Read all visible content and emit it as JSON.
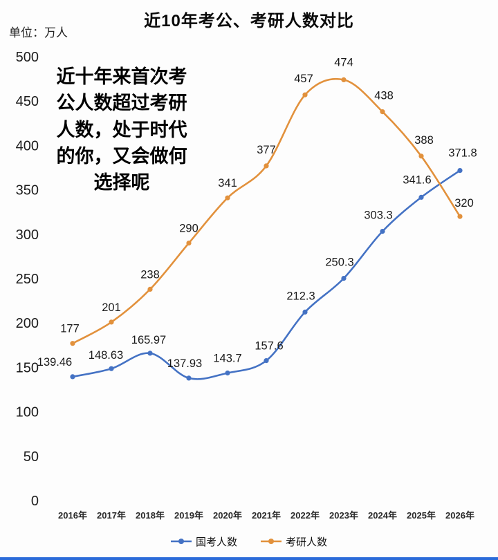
{
  "page": {
    "title": "近10年考公、考研人数对比",
    "unit_label": "单位：万人",
    "annotation_lines": [
      "近十年来首次考",
      "公人数超过考研",
      "人数，处于时代",
      "的你，又会做何",
      "选择呢"
    ],
    "bottom_bar_color": "#2b6bd9"
  },
  "chart_data": {
    "type": "line",
    "title": "近10年考公、考研人数对比",
    "unit": "万人",
    "categories": [
      "2016年",
      "2017年",
      "2018年",
      "2019年",
      "2020年",
      "2021年",
      "2022年",
      "2023年",
      "2024年",
      "2025年",
      "2026年"
    ],
    "series": [
      {
        "name": "国考人数",
        "color": "#4472c4",
        "values": [
          139.46,
          148.63,
          165.97,
          137.93,
          143.7,
          157.6,
          212.3,
          250.3,
          303.3,
          341.6,
          371.8
        ]
      },
      {
        "name": "考研人数",
        "color": "#e2913c",
        "values": [
          177,
          201,
          238,
          290,
          341,
          377,
          457,
          474,
          438,
          388,
          320
        ]
      }
    ],
    "ylim": [
      0,
      500
    ],
    "yticks": [
      0,
      50,
      100,
      150,
      200,
      250,
      300,
      350,
      400,
      450,
      500
    ],
    "grid": false,
    "legend_position": "bottom",
    "data_labels": true
  }
}
